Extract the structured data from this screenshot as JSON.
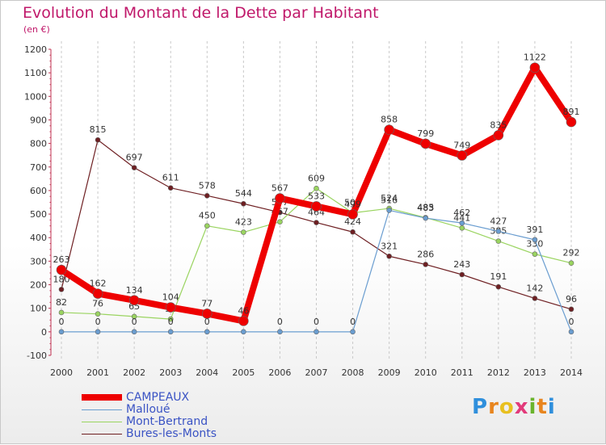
{
  "title": "Evolution du Montant de la Dette par Habitant",
  "subtitle": "(en €)",
  "logo": {
    "letters": [
      "P",
      "r",
      "o",
      "x",
      "i",
      "t",
      "i"
    ],
    "colors": [
      "#2f8fdc",
      "#e8851e",
      "#e8c020",
      "#e23a7a",
      "#6ab42c",
      "#e8851e",
      "#2f8fdc"
    ]
  },
  "chart_data": {
    "type": "line",
    "x": [
      "2000",
      "2001",
      "2002",
      "2003",
      "2004",
      "2005",
      "2006",
      "2007",
      "2008",
      "2009",
      "2010",
      "2011",
      "2012",
      "2013",
      "2014"
    ],
    "ylim": [
      -100,
      1200
    ],
    "yticks": [
      -100,
      0,
      100,
      200,
      300,
      400,
      500,
      600,
      700,
      800,
      900,
      1000,
      1100,
      1200
    ],
    "grid": "vertical-dashed",
    "legend_position": "bottom-left",
    "series": [
      {
        "name": "Bures-les-Monts",
        "color": "#6e1f22",
        "width": 1.2,
        "marker": 3,
        "values": [
          180,
          815,
          697,
          611,
          578,
          544,
          507,
          464,
          424,
          321,
          286,
          243,
          191,
          142,
          96
        ]
      },
      {
        "name": "Mont-Bertrand",
        "color": "#9ad460",
        "width": 1.2,
        "marker": 3,
        "values": [
          82,
          76,
          65,
          54,
          450,
          423,
          467,
          609,
          505,
          524,
          485,
          441,
          385,
          330,
          292
        ]
      },
      {
        "name": "Malloué",
        "color": "#6a9dd0",
        "width": 1.2,
        "marker": 3,
        "values": [
          0,
          0,
          0,
          0,
          0,
          0,
          0,
          0,
          0,
          516,
          483,
          462,
          427,
          391,
          0
        ]
      },
      {
        "name": "CAMPEAUX",
        "color": "#ee0000",
        "width": 8,
        "marker": 6,
        "values": [
          263,
          162,
          134,
          104,
          77,
          46,
          567,
          533,
          499,
          858,
          799,
          749,
          835,
          1122,
          891
        ]
      }
    ]
  }
}
